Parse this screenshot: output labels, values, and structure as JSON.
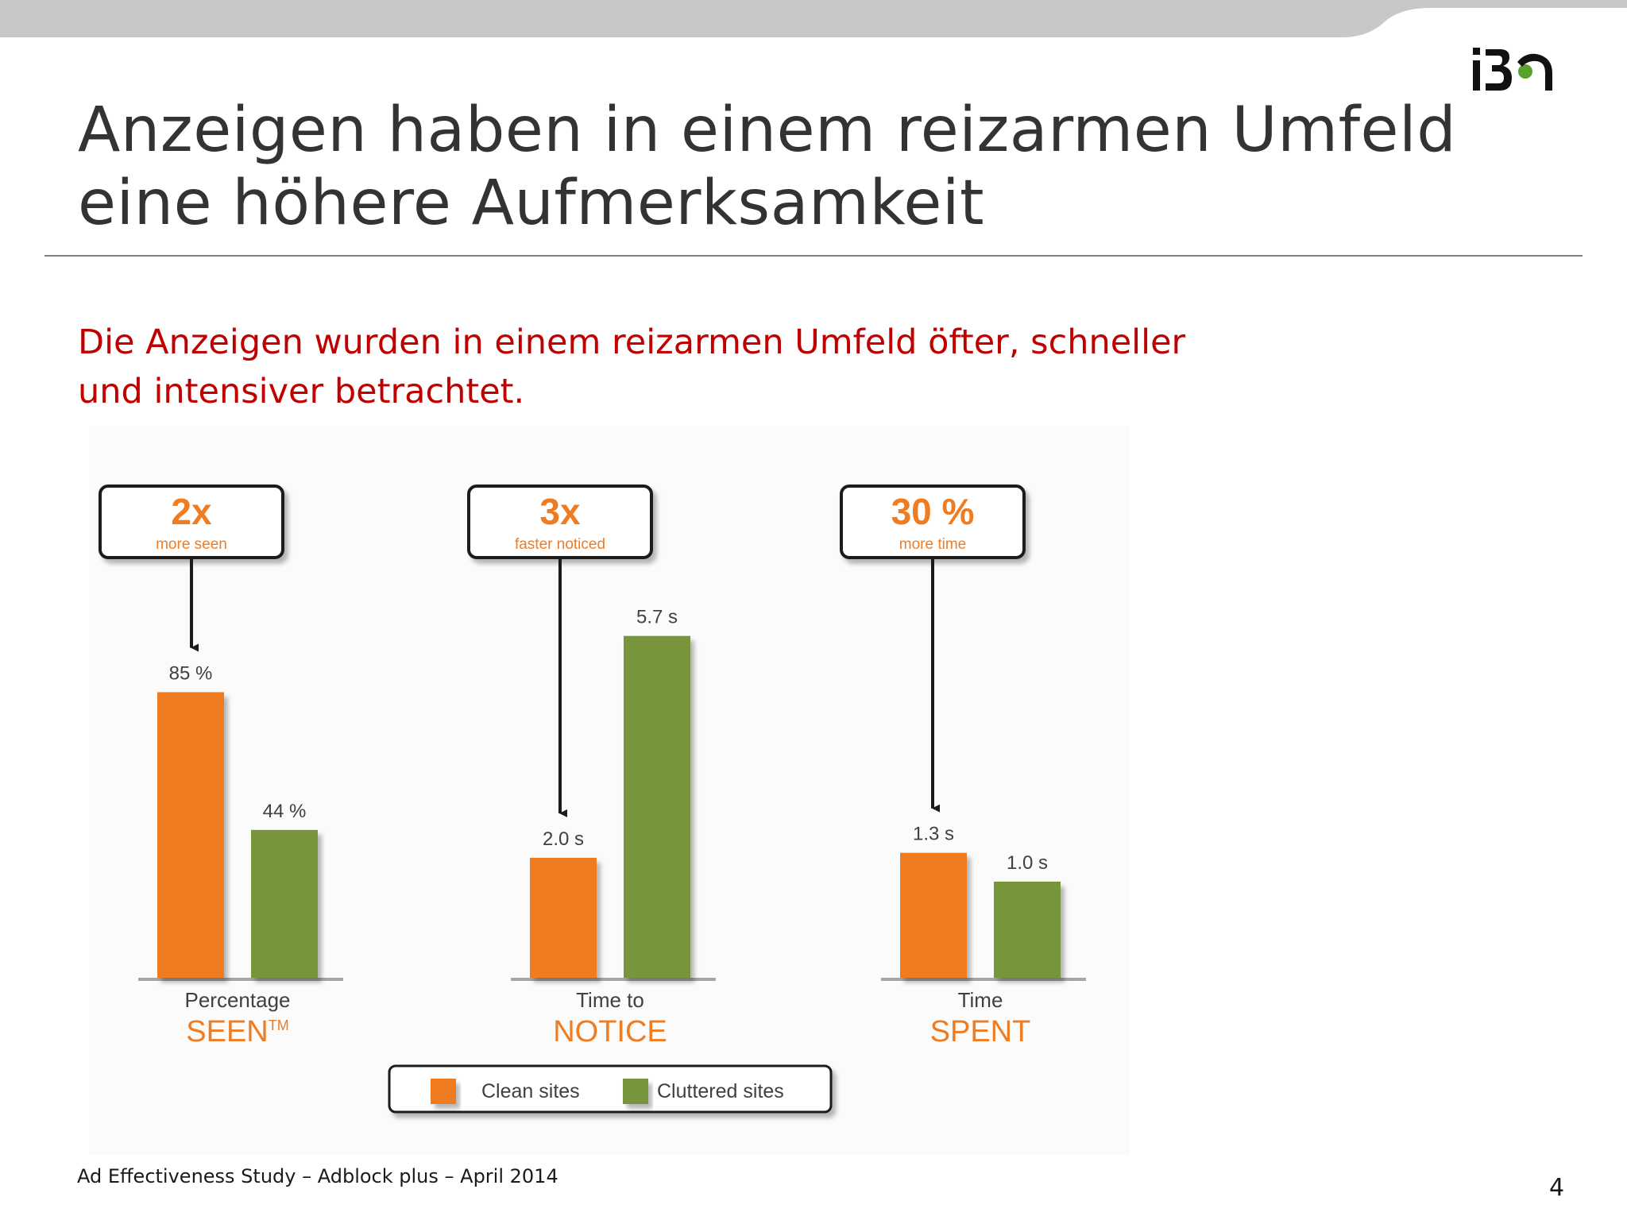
{
  "slide": {
    "title_lines": [
      "Anzeigen haben in einem reizarmen Umfeld",
      "eine höhere Aufmerksamkeit"
    ],
    "subtitle_lines": [
      "Die Anzeigen wurden in einem reizarmen Umfeld öfter, schneller",
      "und intensiver betrachtet."
    ],
    "footer": "Ad Effectiveness Study – Adblock plus – April 2014",
    "page_number": "4",
    "logo": "iba-logo",
    "colors": {
      "title": "#333333",
      "subtitle": "#c00000",
      "top_band": "#c8c8c8",
      "logo_dark": "#111111",
      "logo_green": "#5aa02c"
    }
  },
  "chart_data": {
    "type": "bar",
    "colors": {
      "Clean sites": "#f07c22",
      "Cluttered sites": "#77963b",
      "category_label": "#f07c22",
      "callout_number": "#f07c22"
    },
    "legend": {
      "items": [
        "Clean sites",
        "Cluttered sites"
      ],
      "position": "bottom"
    },
    "groups": [
      {
        "name": "Percentage",
        "label_top": "Percentage",
        "label_bottom": "SEEN",
        "label_mark": "TM",
        "callout": {
          "value": "2x",
          "text": "more seen"
        },
        "values": [
          85,
          44
        ],
        "data_labels": [
          "85 %",
          "44 %"
        ],
        "unit": "%"
      },
      {
        "name": "Time to NOTICE",
        "label_top": "Time to",
        "label_bottom": "NOTICE",
        "label_mark": "",
        "callout": {
          "value": "3x",
          "text": "faster noticed"
        },
        "values": [
          2.0,
          5.7
        ],
        "data_labels": [
          "2.0 s",
          "5.7 s"
        ],
        "unit": "s"
      },
      {
        "name": "Time SPENT",
        "label_top": "Time",
        "label_bottom": "SPENT",
        "label_mark": "",
        "callout": {
          "value": "30 %",
          "text": "more time"
        },
        "values": [
          1.3,
          1.0
        ],
        "data_labels": [
          "1.3 s",
          "1.0 s"
        ],
        "unit": "s"
      }
    ]
  }
}
